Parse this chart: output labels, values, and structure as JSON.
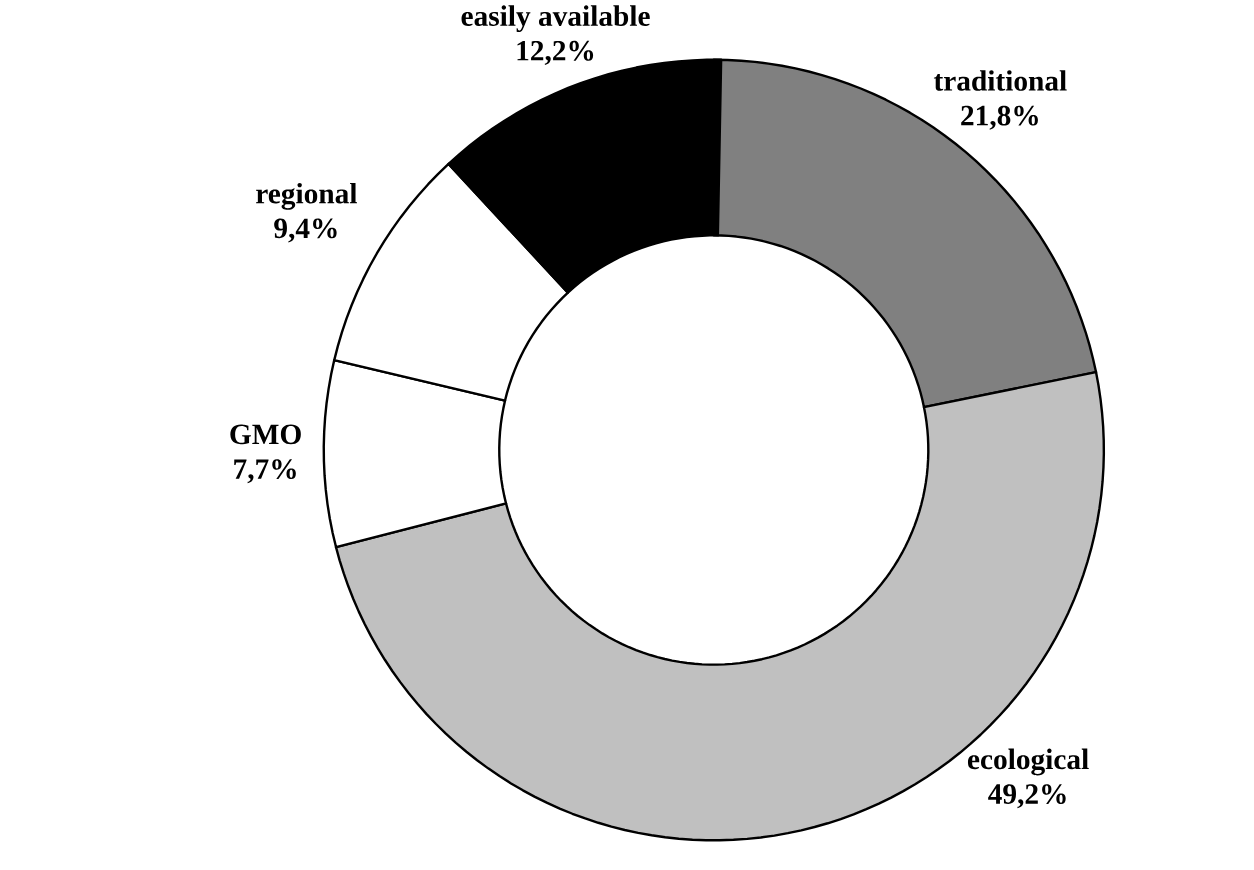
{
  "chart_data": {
    "type": "donut",
    "categories": [
      "traditional",
      "ecological",
      "GMO",
      "regional",
      "easily available"
    ],
    "values": [
      21.8,
      49.2,
      7.7,
      9.4,
      12.2
    ],
    "value_labels": [
      "21,8%",
      "49,2%",
      "7,7%",
      "9,4%",
      "12,2%"
    ],
    "colors": [
      "#808080",
      "#c0c0c0",
      "#ffffff",
      "#ffffff",
      "#000000"
    ]
  }
}
